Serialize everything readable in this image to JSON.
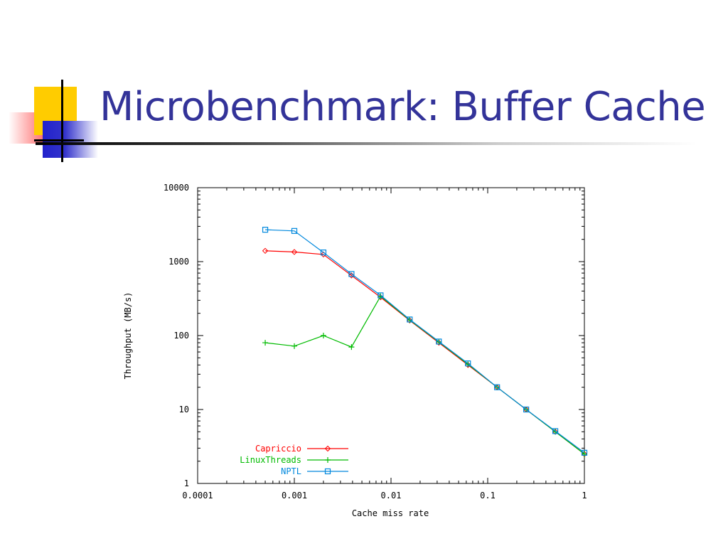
{
  "slide": {
    "title": "Microbenchmark: Buffer Cache"
  },
  "chart_data": {
    "type": "line",
    "title": "",
    "xlabel": "Cache miss rate",
    "ylabel": "Throughput (MB/s)",
    "x_scale": "log",
    "y_scale": "log",
    "xlim": [
      0.0001,
      1
    ],
    "ylim": [
      1,
      10000
    ],
    "x_ticks": [
      0.0001,
      0.001,
      0.01,
      0.1,
      1
    ],
    "x_tick_labels": [
      "0.0001",
      "0.001",
      "0.01",
      "0.1",
      "1"
    ],
    "y_ticks": [
      1,
      10,
      100,
      1000,
      10000
    ],
    "y_tick_labels": [
      "1",
      "10",
      "100",
      "1000",
      "10000"
    ],
    "grid": false,
    "legend_position": "bottom-left",
    "series": [
      {
        "name": "Capriccio",
        "color": "#ff0000",
        "marker": "diamond",
        "x": [
          0.0005,
          0.001,
          0.002,
          0.0039,
          0.0078,
          0.0156,
          0.03125,
          0.0625,
          0.125,
          0.25,
          0.5,
          1
        ],
        "y": [
          1400,
          1350,
          1250,
          650,
          330,
          160,
          80,
          40,
          20,
          10,
          5,
          2.5
        ]
      },
      {
        "name": "LinuxThreads",
        "color": "#00bb00",
        "marker": "plus",
        "x": [
          0.0005,
          0.001,
          0.002,
          0.0039,
          0.0078,
          0.0156,
          0.03125,
          0.0625,
          0.125,
          0.25,
          0.5,
          1
        ],
        "y": [
          80,
          72,
          100,
          70,
          340,
          162,
          82,
          41,
          20,
          10,
          5,
          2.5
        ]
      },
      {
        "name": "NPTL",
        "color": "#0088dd",
        "marker": "square",
        "x": [
          0.0005,
          0.001,
          0.002,
          0.0039,
          0.0078,
          0.0156,
          0.03125,
          0.0625,
          0.125,
          0.25,
          0.5,
          1
        ],
        "y": [
          2700,
          2600,
          1330,
          680,
          350,
          165,
          83,
          42,
          20,
          10,
          5.1,
          2.6
        ]
      }
    ]
  }
}
